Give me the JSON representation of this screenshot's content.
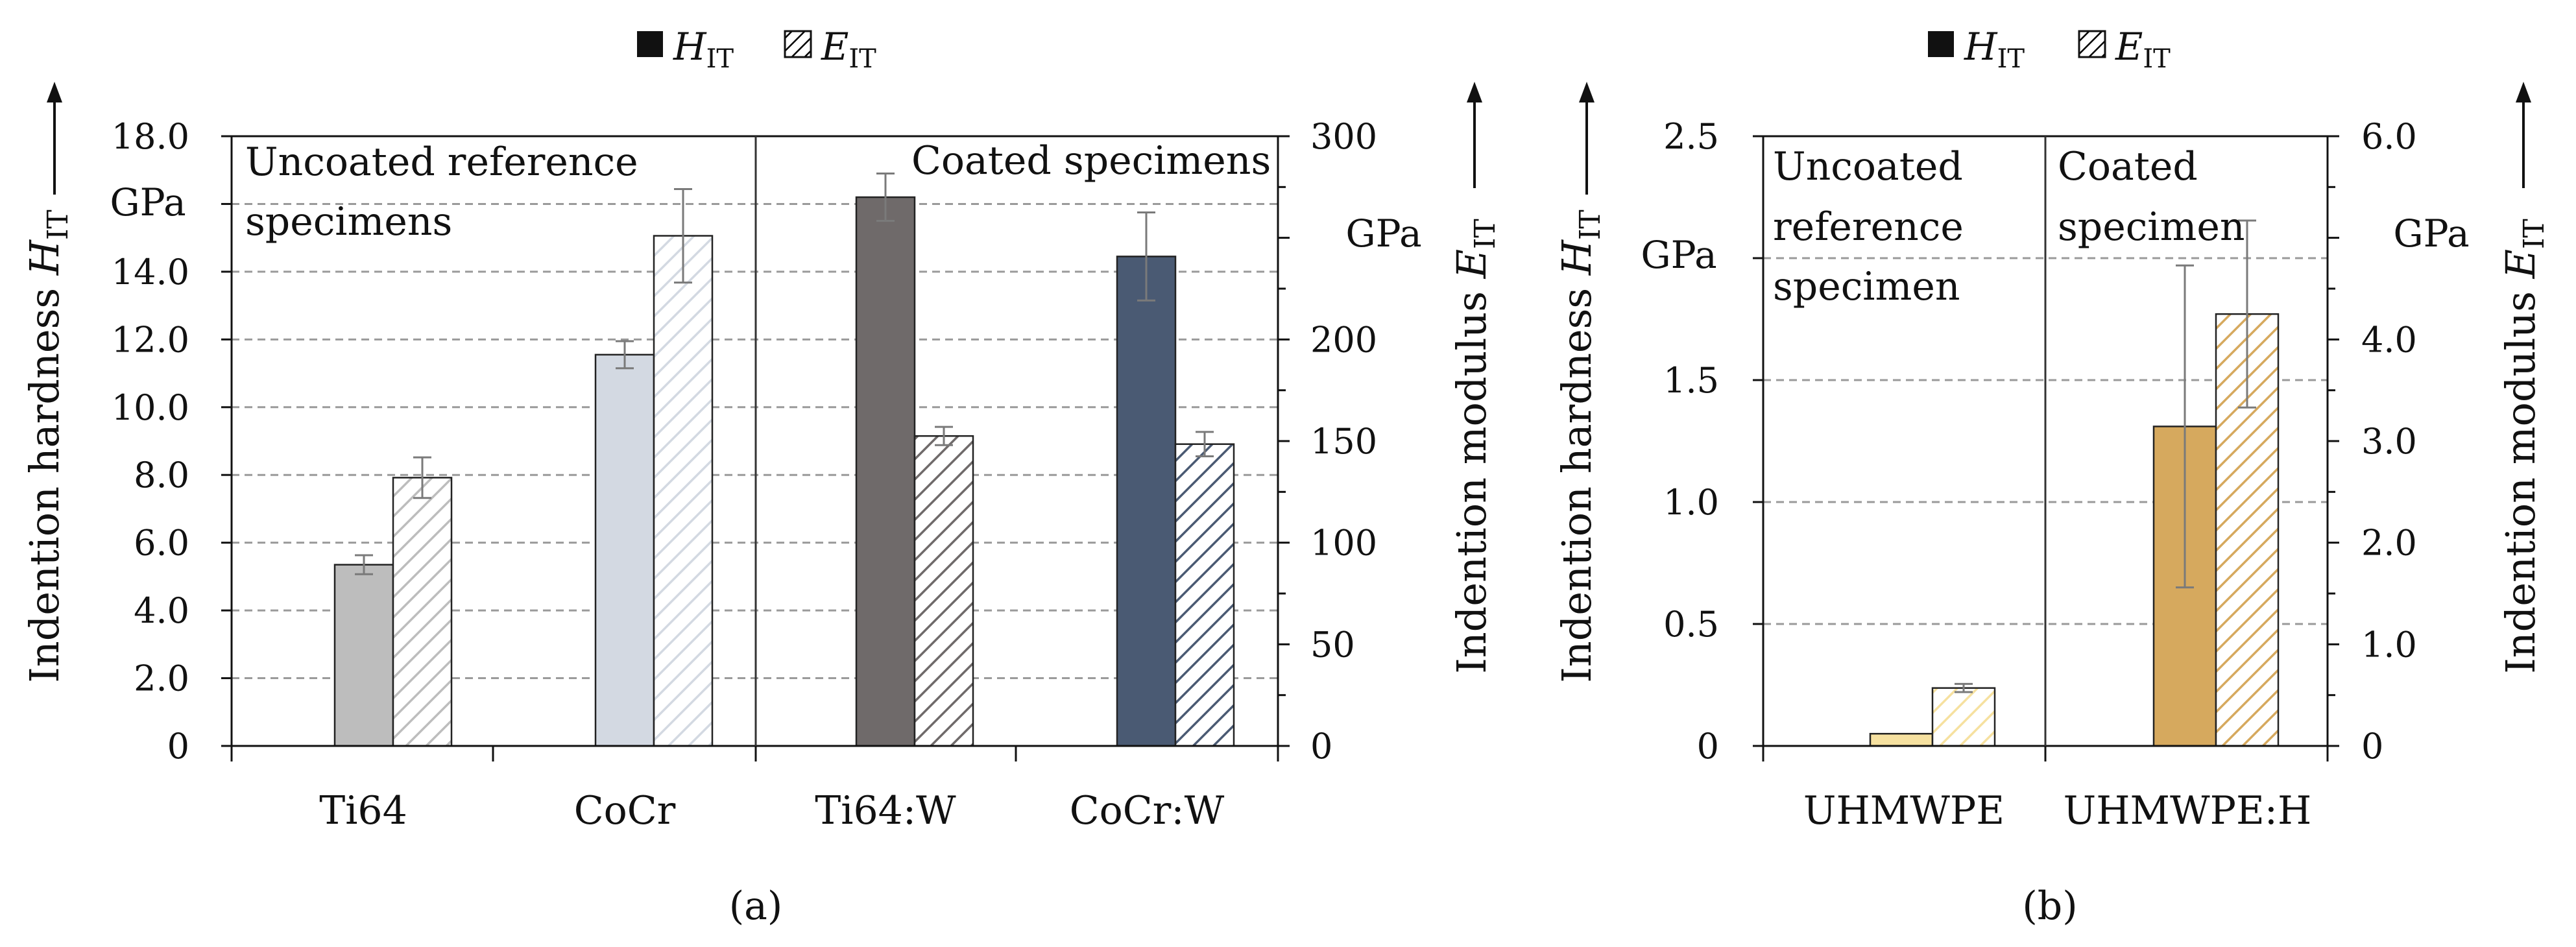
{
  "colors": {
    "ti64_coated": "#6f6a6a",
    "ti64_uncoated": "#bdbdbd",
    "cocr_coated": "#4a5a73",
    "cocr_uncoated": "#d3d9e2",
    "uhmwpe_coated": "#d6a95e",
    "uhmwpe_uncoated": "#f6e1a0",
    "grid": "#9a9a9a",
    "error_bar": "#7a7a7a"
  },
  "legend": {
    "h_main": "H",
    "h_sub": "IT",
    "e_main": "E",
    "e_sub": "IT"
  },
  "chart_data": [
    {
      "type": "bar",
      "caption": "(a)",
      "categories": [
        "Ti64",
        "CoCr",
        "Ti64:W",
        "CoCr:W"
      ],
      "region_labels": {
        "uncoated_line1": "Uncoated reference",
        "uncoated_line2": "specimens",
        "coated_line1": "Coated specimens"
      },
      "left_axis": {
        "label_main": "Indention  hardness ",
        "label_sym": "H",
        "label_sub": "IT",
        "unit": "GPa",
        "ylim": [
          0,
          18
        ],
        "ticks": [
          0,
          2,
          4,
          6,
          8,
          10,
          12,
          14,
          16,
          18
        ],
        "tick_labels": [
          "0",
          "2.0",
          "4.0",
          "6.0",
          "8.0",
          "10.0",
          "12.0",
          "14.0",
          "",
          "18.0"
        ]
      },
      "right_axis": {
        "label_main": "Indention  modulus ",
        "label_sym": "E",
        "label_sub": "IT",
        "unit": "GPa",
        "ylim": [
          0,
          300
        ],
        "ticks": [
          0,
          50,
          100,
          150,
          200,
          250,
          300
        ],
        "tick_labels": [
          "0",
          "50",
          "100",
          "150",
          "200",
          "",
          "300"
        ],
        "minor_step": 25
      },
      "grid_values_left": [
        2,
        4,
        6,
        8,
        10,
        12,
        14,
        16
      ],
      "series": [
        {
          "name": "H_IT",
          "axis": "left",
          "values": [
            5.35,
            11.55,
            16.2,
            14.45
          ],
          "errors": [
            0.28,
            0.4,
            0.7,
            1.3
          ]
        },
        {
          "name": "E_IT",
          "axis": "right",
          "values": [
            132,
            251,
            152.5,
            148.5
          ],
          "errors": [
            10,
            23,
            4.5,
            6
          ]
        }
      ]
    },
    {
      "type": "bar",
      "caption": "(b)",
      "categories": [
        "UHMWPE",
        "UHMWPE:H"
      ],
      "region_labels": {
        "uncoated_line1": "Uncoated",
        "uncoated_line2": "reference",
        "uncoated_line3": "specimen",
        "coated_line1": "Coated",
        "coated_line2": "specimen"
      },
      "left_axis": {
        "label_main": "Indention  hardness ",
        "label_sym": "H",
        "label_sub": "IT",
        "unit": "GPa",
        "ylim": [
          0,
          2.5
        ],
        "ticks": [
          0,
          0.5,
          1.0,
          1.5,
          2.0,
          2.5
        ],
        "tick_labels": [
          "0",
          "0.5",
          "1.0",
          "1.5",
          "",
          "2.5"
        ]
      },
      "right_axis": {
        "label_main": "Indention  modulus ",
        "label_sym": "E",
        "label_sub": "IT",
        "unit": "GPa",
        "ylim": [
          0,
          6
        ],
        "ticks": [
          0,
          1,
          2,
          3,
          4,
          5,
          6
        ],
        "tick_labels": [
          "0",
          "1.0",
          "2.0",
          "3.0",
          "4.0",
          "",
          "6.0"
        ],
        "minor_step": 0.5
      },
      "grid_values_left": [
        0.5,
        1.0,
        1.5,
        2.0
      ],
      "series": [
        {
          "name": "H_IT",
          "axis": "left",
          "values": [
            0.05,
            1.31
          ],
          "errors": [
            0.0,
            0.66
          ]
        },
        {
          "name": "E_IT",
          "axis": "right",
          "values": [
            0.57,
            4.25
          ],
          "errors": [
            0.04,
            0.92
          ]
        }
      ]
    }
  ]
}
